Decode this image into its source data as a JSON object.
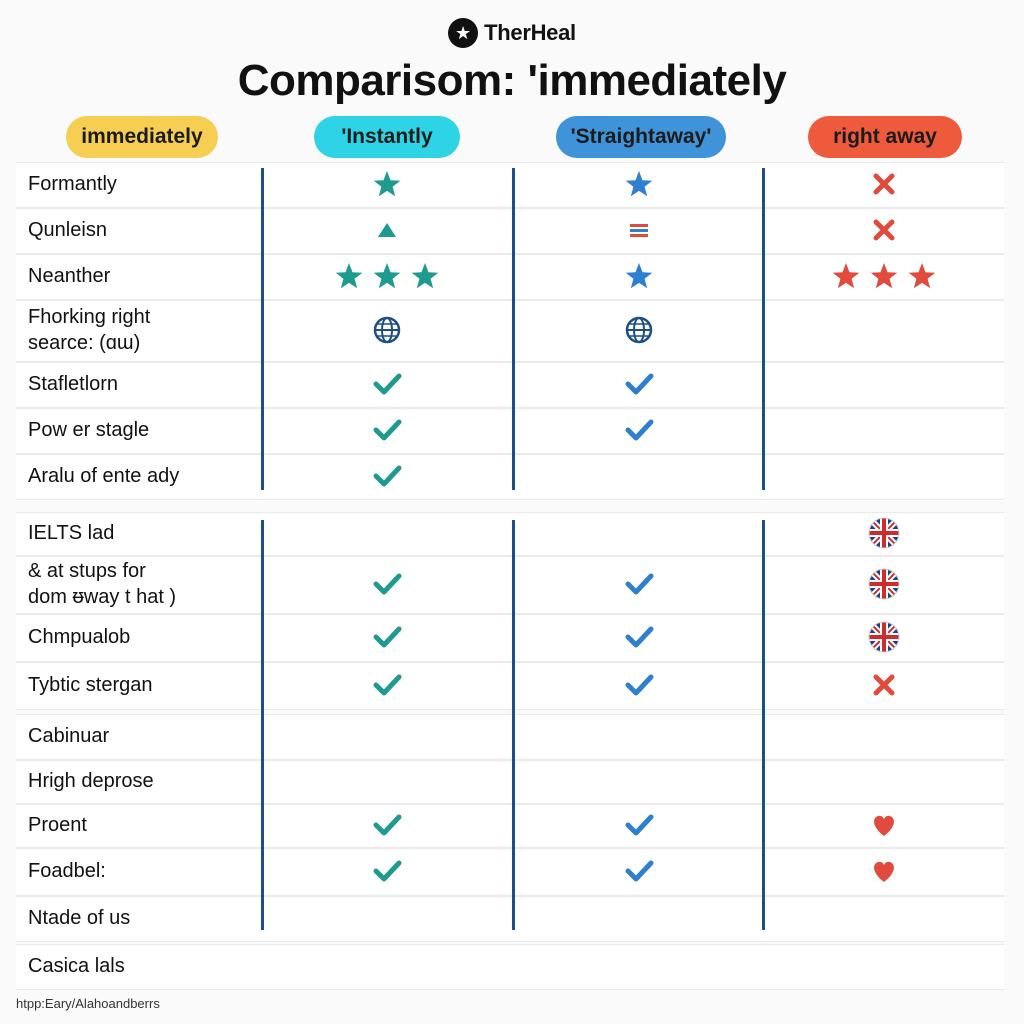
{
  "header": {
    "brand": "TherHeal",
    "title": "Comparisom: 'immediately"
  },
  "columns": [
    {
      "label": "immediately",
      "color": "#f6cf52"
    },
    {
      "label": "'Instantly",
      "color": "#2fd3e6"
    },
    {
      "label": "'Straightaway'",
      "color": "#3f93d9"
    },
    {
      "label": "right away",
      "color": "#ee5a3c"
    }
  ],
  "colors": {
    "teal": "#1f9a8e",
    "blue": "#2f7fd0",
    "red": "#e04b3d",
    "line": "#1d4f86"
  },
  "rows": [
    {
      "label": "Formantly",
      "marks": [
        "star-icon",
        "star-icon",
        "x-icon"
      ]
    },
    {
      "label": "Qunleisn",
      "marks": [
        "triangle-icon",
        "equals-icon",
        "x-icon"
      ]
    },
    {
      "label": "Neanther",
      "marks": [
        "three-stars-icon",
        "star-icon",
        "three-stars-icon"
      ]
    },
    {
      "label": "Fhorking right\nsearce: (ɑɯ)",
      "marks": [
        "globe-icon",
        "globe-icon",
        ""
      ]
    },
    {
      "label": "Stafletlorn",
      "marks": [
        "check-icon",
        "check-icon",
        ""
      ]
    },
    {
      "label": "Pow er stagle",
      "marks": [
        "check-icon",
        "check-icon",
        ""
      ]
    },
    {
      "label": "Aralu of ente ady",
      "marks": [
        "check-icon",
        "",
        ""
      ]
    },
    {
      "label": "IELTS lad",
      "marks": [
        "",
        "",
        "uk-flag-icon"
      ]
    },
    {
      "label": "& at stups for\ndom ᵿway t hat )",
      "marks": [
        "check-icon",
        "check-icon",
        "uk-flag-icon"
      ]
    },
    {
      "label": "Chmpualob",
      "marks": [
        "check-icon",
        "check-icon",
        "uk-flag-icon"
      ]
    },
    {
      "label": "Tybtic stergan",
      "marks": [
        "check-icon",
        "check-icon",
        "x-icon"
      ]
    },
    {
      "label": "Cabinuar",
      "marks": [
        "",
        "",
        ""
      ]
    },
    {
      "label": "Hrigh deprose",
      "marks": [
        "",
        "",
        ""
      ]
    },
    {
      "label": "Proent",
      "marks": [
        "check-icon",
        "check-icon",
        "heart-icon"
      ]
    },
    {
      "label": "Foadbel:",
      "marks": [
        "check-icon",
        "check-icon",
        "heart-icon"
      ]
    },
    {
      "label": "Ntade of us",
      "marks": [
        "",
        "",
        ""
      ]
    },
    {
      "label": "Casica lals",
      "marks": [
        "",
        "",
        ""
      ]
    }
  ],
  "footer": {
    "text": "htpp:Eary/Alahoandberrs"
  }
}
